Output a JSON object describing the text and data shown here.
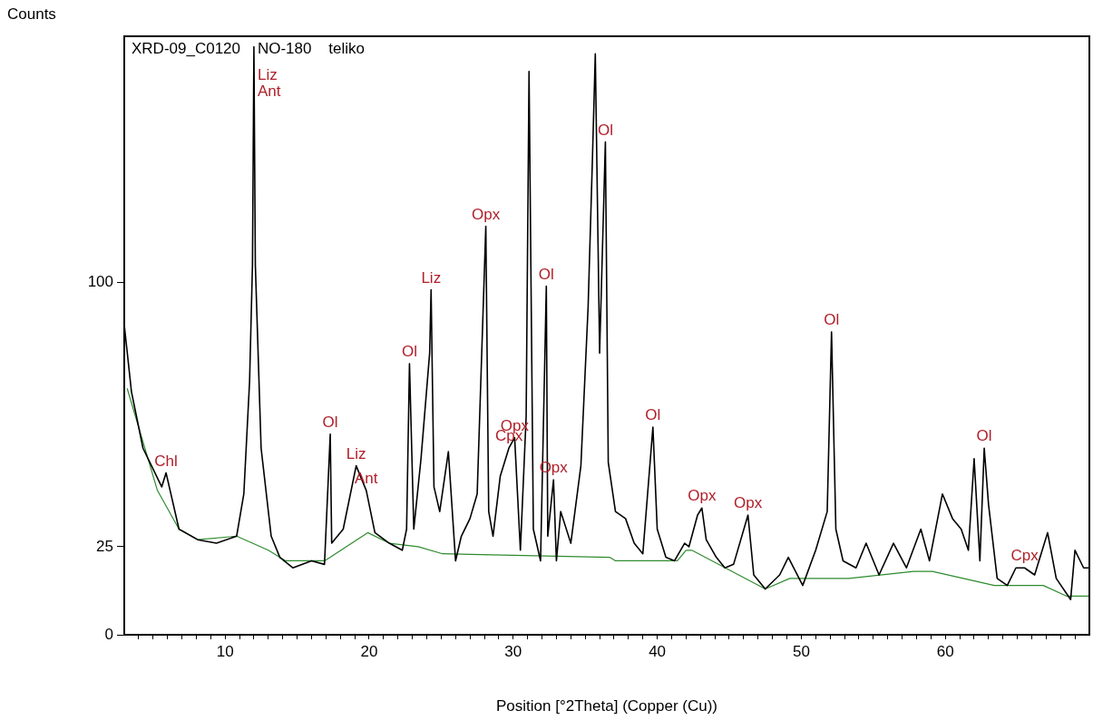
{
  "chart_data": {
    "type": "line",
    "title": "XRD-09_C0120    NO-180    teliko",
    "xlabel": "Position [°2Theta] (Copper (Cu))",
    "ylabel": "Counts",
    "xlim": [
      3,
      70
    ],
    "xticks": [
      {
        "value": 4,
        "label": null
      },
      {
        "value": 5,
        "label": null
      },
      {
        "value": 6,
        "label": null
      },
      {
        "value": 7,
        "label": null
      },
      {
        "value": 8,
        "label": null
      },
      {
        "value": 9,
        "label": null
      },
      10,
      {
        "value": 11,
        "label": null
      },
      {
        "value": 12,
        "label": null
      },
      {
        "value": 13,
        "label": null
      },
      {
        "value": 14,
        "label": null
      },
      {
        "value": 15,
        "label": null
      },
      {
        "value": 16,
        "label": null
      },
      {
        "value": 17,
        "label": null
      },
      {
        "value": 18,
        "label": null
      },
      {
        "value": 19,
        "label": null
      },
      20,
      {
        "value": 21,
        "label": null
      },
      {
        "value": 22,
        "label": null
      },
      {
        "value": 23,
        "label": null
      },
      {
        "value": 24,
        "label": null
      },
      {
        "value": 25,
        "label": null
      },
      {
        "value": 26,
        "label": null
      },
      {
        "value": 27,
        "label": null
      },
      {
        "value": 28,
        "label": null
      },
      {
        "value": 29,
        "label": null
      },
      30,
      {
        "value": 31,
        "label": null
      },
      {
        "value": 32,
        "label": null
      },
      {
        "value": 33,
        "label": null
      },
      {
        "value": 34,
        "label": null
      },
      {
        "value": 35,
        "label": null
      },
      {
        "value": 36,
        "label": null
      },
      {
        "value": 37,
        "label": null
      },
      {
        "value": 38,
        "label": null
      },
      {
        "value": 39,
        "label": null
      },
      40,
      {
        "value": 41,
        "label": null
      },
      {
        "value": 42,
        "label": null
      },
      {
        "value": 43,
        "label": null
      },
      {
        "value": 44,
        "label": null
      },
      {
        "value": 45,
        "label": null
      },
      {
        "value": 46,
        "label": null
      },
      {
        "value": 47,
        "label": null
      },
      {
        "value": 48,
        "label": null
      },
      {
        "value": 49,
        "label": null
      },
      50,
      {
        "value": 51,
        "label": null
      },
      {
        "value": 52,
        "label": null
      },
      {
        "value": 53,
        "label": null
      },
      {
        "value": 54,
        "label": null
      },
      {
        "value": 55,
        "label": null
      },
      {
        "value": 56,
        "label": null
      },
      {
        "value": 57,
        "label": null
      },
      {
        "value": 58,
        "label": null
      },
      {
        "value": 59,
        "label": null
      },
      60,
      {
        "value": 61,
        "label": null
      },
      {
        "value": 62,
        "label": null
      },
      {
        "value": 63,
        "label": null
      },
      {
        "value": 64,
        "label": null
      },
      {
        "value": 65,
        "label": null
      },
      {
        "value": 66,
        "label": null
      },
      {
        "value": 67,
        "label": null
      },
      {
        "value": 68,
        "label": null
      },
      {
        "value": 69,
        "label": null
      }
    ],
    "ylim": [
      0,
      170
    ],
    "yticks": [
      0,
      25,
      100
    ],
    "grid": false,
    "legend": false,
    "marker": "none",
    "line_style": "solid",
    "series": [
      {
        "color": "#000000",
        "x": [
          3.0,
          3.5,
          4.3,
          5.6,
          5.9,
          6.8,
          8.1,
          9.4,
          10.8,
          11.3,
          11.7,
          11.9,
          12.0,
          12.1,
          12.5,
          13.2,
          13.8,
          14.7,
          16.0,
          16.9,
          17.3,
          17.4,
          18.2,
          19.1,
          19.8,
          20.4,
          21.4,
          22.3,
          22.6,
          22.8,
          23.1,
          23.6,
          24.2,
          24.3,
          24.5,
          24.9,
          25.5,
          26.0,
          26.4,
          27.0,
          27.5,
          28.1,
          28.3,
          28.6,
          29.1,
          29.7,
          30.1,
          30.5,
          30.9,
          31.1,
          31.4,
          31.9,
          32.3,
          32.4,
          32.8,
          33.0,
          33.3,
          34.0,
          34.7,
          35.2,
          35.5,
          35.7,
          36.0,
          36.4,
          36.6,
          37.1,
          37.8,
          38.4,
          39.0,
          39.7,
          40.0,
          40.6,
          41.2,
          41.9,
          42.2,
          42.8,
          43.1,
          43.4,
          44.1,
          44.7,
          45.3,
          46.3,
          46.7,
          47.5,
          48.5,
          49.1,
          50.1,
          51.0,
          51.8,
          52.1,
          52.4,
          52.9,
          53.8,
          54.5,
          55.4,
          56.4,
          57.3,
          58.3,
          58.9,
          59.8,
          60.5,
          61.1,
          61.6,
          62.0,
          62.4,
          62.7,
          63.0,
          63.6,
          64.3,
          64.9,
          65.5,
          66.2,
          67.1,
          67.7,
          68.7,
          69.0,
          69.6,
          70.0
        ],
        "values": [
          88,
          69,
          53,
          42,
          46,
          30,
          27,
          26,
          28,
          40,
          72,
          105,
          167,
          105,
          53,
          28,
          22,
          19,
          21,
          20,
          57,
          26,
          30,
          48,
          41,
          29,
          26,
          24,
          30,
          77,
          30,
          50,
          80,
          98,
          42,
          35,
          52,
          21,
          28,
          33,
          40,
          116,
          35,
          28,
          45,
          53,
          56,
          24,
          62,
          160,
          30,
          21,
          99,
          28,
          44,
          21,
          35,
          26,
          48,
          93,
          135,
          165,
          80,
          140,
          49,
          35,
          33,
          26,
          23,
          59,
          30,
          22,
          21,
          26,
          25,
          34,
          36,
          27,
          22,
          19,
          20,
          34,
          17,
          13,
          17,
          22,
          14,
          24,
          35,
          86,
          30,
          21,
          19,
          26,
          17,
          26,
          19,
          30,
          21,
          40,
          33,
          30,
          24,
          50,
          21,
          53,
          37,
          16,
          14,
          19,
          19,
          17,
          29,
          16,
          10,
          24,
          19,
          19
        ]
      },
      {
        "color": "#2e8b2e",
        "x": [
          3.2,
          5.3,
          6.8,
          8.1,
          10.8,
          13.0,
          14.2,
          16.9,
          17.3,
          19.9,
          21.4,
          23.4,
          25.1,
          36.7,
          37.1,
          41.4,
          42.0,
          42.4,
          47.5,
          49.2,
          53.3,
          57.8,
          59.1,
          63.4,
          66.8,
          68.4,
          70.0
        ],
        "values": [
          70,
          41,
          30,
          27,
          28,
          24,
          21,
          21,
          22,
          29,
          26,
          25,
          23,
          22,
          21,
          21,
          24,
          24,
          13,
          16,
          16,
          18,
          18,
          14,
          14,
          11,
          11
        ]
      }
    ],
    "annotations": [
      {
        "text": "Liz",
        "x": 12.0,
        "y": 167
      },
      {
        "text": "Ant",
        "x": 12.0,
        "y": 167
      },
      {
        "text": "Chl",
        "x": 5.9,
        "y": 46
      },
      {
        "text": "Ol",
        "x": 17.3,
        "y": 57
      },
      {
        "text": "Liz",
        "x": 19.1,
        "y": 48
      },
      {
        "text": "Ant",
        "x": 19.8,
        "y": 41
      },
      {
        "text": "Ol",
        "x": 22.8,
        "y": 77
      },
      {
        "text": "Liz",
        "x": 24.3,
        "y": 98
      },
      {
        "text": "Opx",
        "x": 28.1,
        "y": 116
      },
      {
        "text": "Opx",
        "x": 30.1,
        "y": 56
      },
      {
        "text": "Cpx",
        "x": 29.7,
        "y": 53
      },
      {
        "text": "Ol",
        "x": 32.3,
        "y": 99
      },
      {
        "text": "Opx",
        "x": 32.8,
        "y": 44
      },
      {
        "text": "Ol",
        "x": 36.4,
        "y": 140
      },
      {
        "text": "Ol",
        "x": 39.7,
        "y": 59
      },
      {
        "text": "Opx",
        "x": 43.1,
        "y": 36
      },
      {
        "text": "Opx",
        "x": 46.3,
        "y": 34
      },
      {
        "text": "Ol",
        "x": 52.1,
        "y": 86
      },
      {
        "text": "Ol",
        "x": 62.7,
        "y": 53
      },
      {
        "text": "Cpx",
        "x": 65.5,
        "y": 19
      }
    ]
  }
}
